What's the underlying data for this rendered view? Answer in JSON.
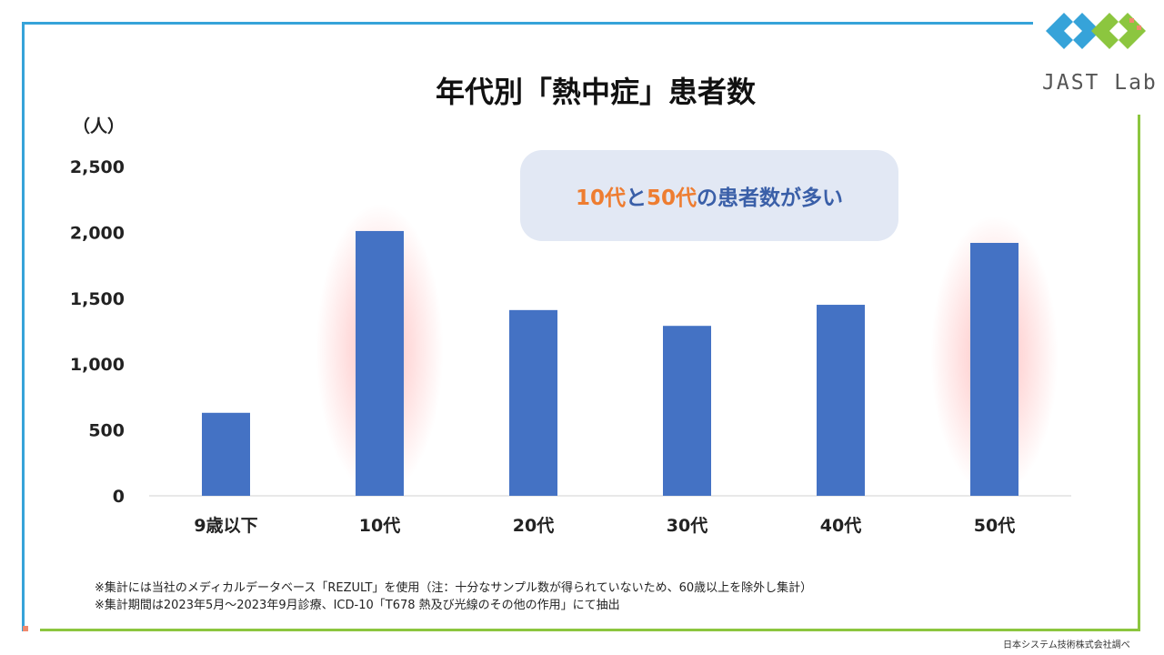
{
  "brand": {
    "logo_text": "JAST Lab"
  },
  "callout": {
    "part1": "10代",
    "part2": "と",
    "part3": "50代",
    "part4": "の患者数が多い"
  },
  "notes": {
    "line1": "※集計には当社のメディカルデータベース「REZULT」を使用（注：十分なサンプル数が得られていないため、60歳以上を除外し集計）",
    "line2": "※集計期間は2023年5月～2023年9月診療、ICD-10「T678 熱及び光線のその他の作用」にて抽出"
  },
  "credit": "日本システム技術株式会社調べ",
  "colors": {
    "bar": "#4472c4",
    "highlight_glow": "#ff8888",
    "callout_accent": "#ee7d31",
    "callout_text": "#3a5fa8",
    "frame_blue": "#36a3d9",
    "frame_green": "#8cc63f"
  },
  "chart_data": {
    "type": "bar",
    "title": "年代別「熱中症」患者数",
    "ylabel": "（人）",
    "xlabel": "",
    "categories": [
      "9歳以下",
      "10代",
      "20代",
      "30代",
      "40代",
      "50代"
    ],
    "values": [
      630,
      2010,
      1410,
      1290,
      1450,
      1920
    ],
    "highlighted": [
      "10代",
      "50代"
    ],
    "ylim": [
      0,
      2500
    ],
    "yticks": [
      0,
      500,
      1000,
      1500,
      2000,
      2500
    ],
    "ytick_labels": [
      "0",
      "500",
      "1,000",
      "1,500",
      "2,000",
      "2,500"
    ],
    "grid": false,
    "legend": "none"
  }
}
